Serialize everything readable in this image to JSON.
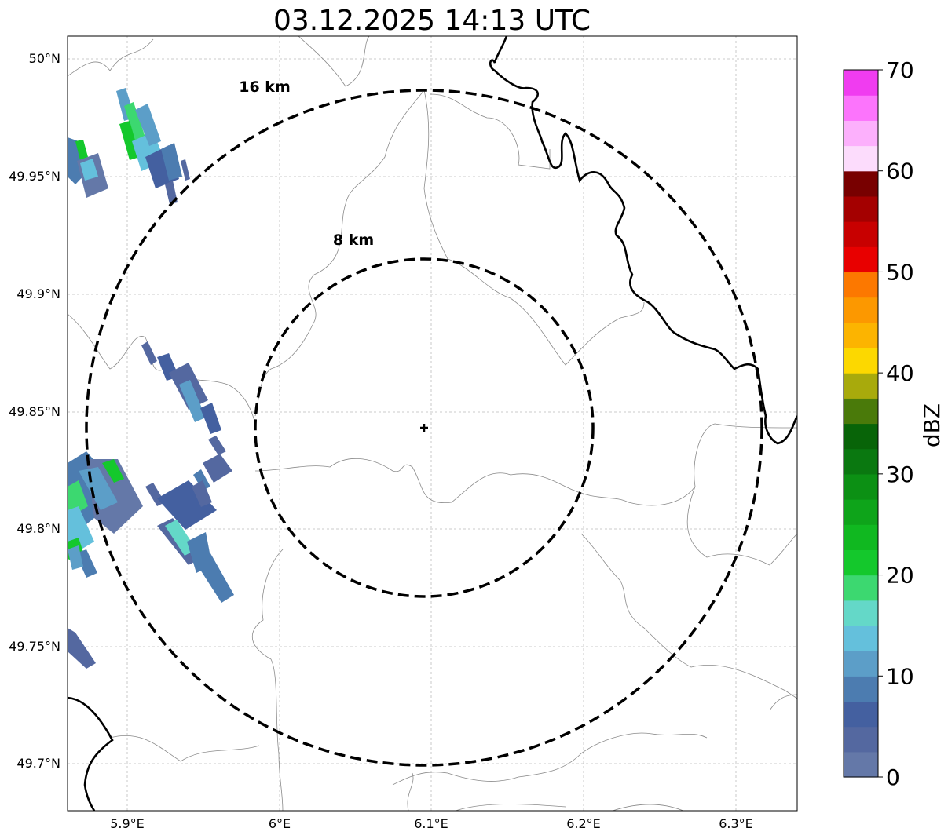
{
  "title": "03.12.2025 14:13 UTC",
  "map": {
    "x_ticks": [
      "5.9°E",
      "6°E",
      "6.1°E",
      "6.2°E",
      "6.3°E"
    ],
    "y_ticks": [
      "50°N",
      "49.95°N",
      "49.9°N",
      "49.85°N",
      "49.8°N",
      "49.75°N",
      "49.7°N"
    ],
    "range_rings": [
      {
        "label": "16 km",
        "radius_km": 16
      },
      {
        "label": "8 km",
        "radius_km": 8
      }
    ],
    "radar_site_marker": "plus-icon",
    "colors": {
      "rings": "#000000",
      "borders": "#808080",
      "country_border": "#000000",
      "grid": "#bbbbbb"
    }
  },
  "colorbar": {
    "label": "dBZ",
    "ticks": [
      "0",
      "10",
      "20",
      "30",
      "40",
      "50",
      "60",
      "70"
    ],
    "min": 0,
    "max": 70,
    "step": 2.5,
    "colors": [
      "#6478a8",
      "#5468a0",
      "#4460a0",
      "#4c7cb0",
      "#5c9ec8",
      "#64c0dc",
      "#64d8c8",
      "#3cd870",
      "#14c82c",
      "#10b820",
      "#0ea41a",
      "#0c9014",
      "#0a7810",
      "#086408",
      "#4a7a0a",
      "#a8aa0c",
      "#fcd800",
      "#fcb400",
      "#fc9800",
      "#fc7800",
      "#e80000",
      "#c80000",
      "#a40000",
      "#780000",
      "#fcdcfc",
      "#fcb0fc",
      "#fc74fc",
      "#f03cf0"
    ]
  }
}
